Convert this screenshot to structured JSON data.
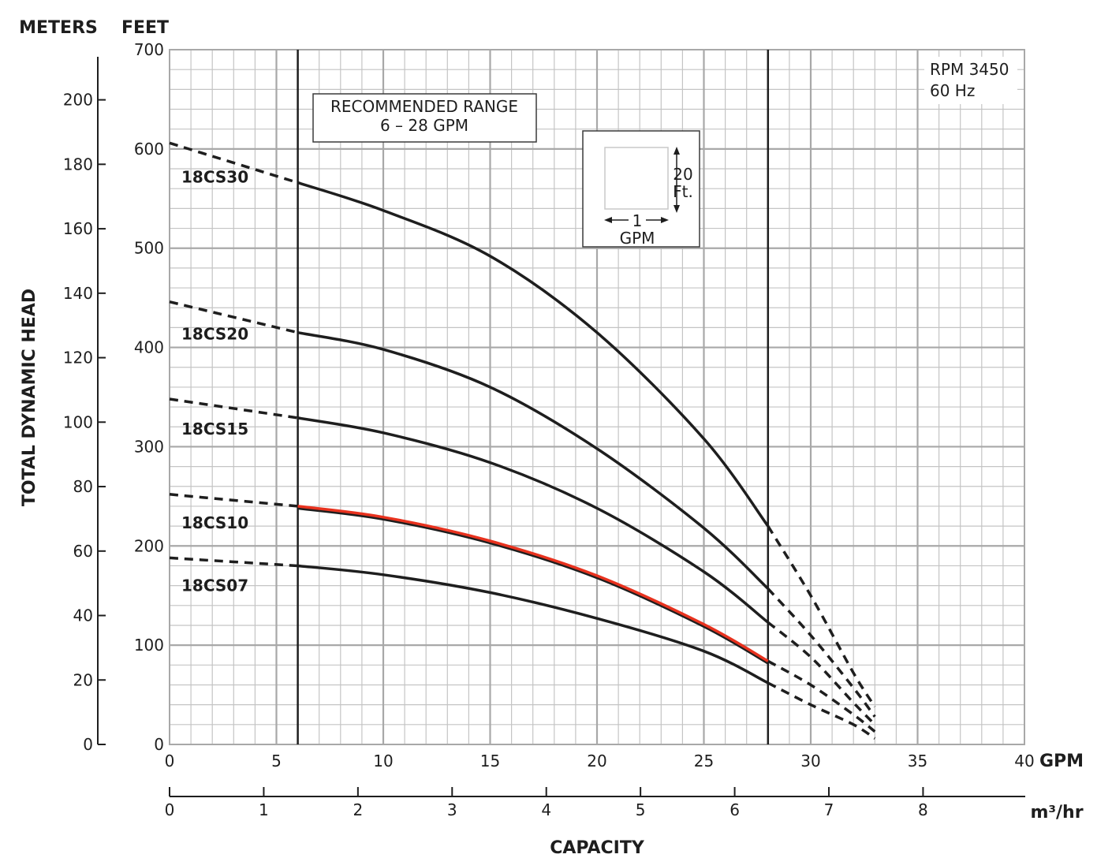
{
  "chart_data": {
    "type": "line",
    "xlabel": "CAPACITY",
    "ylabel": "TOTAL DYNAMIC HEAD",
    "x_unit": "GPM",
    "x2_unit": "m³/hr",
    "y_unit": "FEET",
    "y2_unit": "METERS",
    "xlim": [
      0,
      40
    ],
    "ylim": [
      0,
      700
    ],
    "x2lim": [
      0,
      9.085
    ],
    "y2lim": [
      0,
      213.36
    ],
    "x_ticks": [
      0,
      5,
      10,
      15,
      20,
      25,
      30,
      35,
      40
    ],
    "y_ticks": [
      0,
      100,
      200,
      300,
      400,
      500,
      600,
      700
    ],
    "x2_ticks": [
      0,
      1,
      2,
      3,
      4,
      5,
      6,
      7,
      8
    ],
    "y2_ticks": [
      0,
      20,
      40,
      60,
      80,
      100,
      120,
      140,
      160,
      180,
      200
    ],
    "grid": true,
    "recommended_range": {
      "x": [
        6,
        28
      ],
      "label_line1": "RECOMMENDED RANGE",
      "label_line2": "6 – 28 GPM"
    },
    "annotation": {
      "line1": "RPM 3450",
      "line2": "60 Hz"
    },
    "scale_box": {
      "vertical_value": "20",
      "vertical_unit": "Ft.",
      "horizontal_value": "1",
      "horizontal_unit": "GPM"
    },
    "series": [
      {
        "name": "18CS30",
        "color": "#1e1e1e",
        "x": [
          0,
          6,
          10,
          15,
          20,
          25,
          28,
          30,
          32,
          33
        ],
        "y": [
          606,
          566,
          538,
          492,
          415,
          308,
          220,
          150,
          72,
          38
        ]
      },
      {
        "name": "18CS20",
        "color": "#1e1e1e",
        "x": [
          0,
          6,
          10,
          15,
          20,
          25,
          28,
          30,
          32,
          33
        ],
        "y": [
          446,
          415,
          398,
          360,
          298,
          218,
          157,
          110,
          57,
          28
        ]
      },
      {
        "name": "18CS15",
        "color": "#1e1e1e",
        "x": [
          0,
          6,
          10,
          15,
          20,
          25,
          28,
          30,
          32,
          33
        ],
        "y": [
          348,
          329,
          314,
          284,
          238,
          174,
          123,
          88,
          42,
          20
        ]
      },
      {
        "name": "18CS10",
        "color": "#e8321e",
        "x": [
          0,
          6,
          10,
          15,
          20,
          25,
          28,
          30,
          32,
          33
        ],
        "y": [
          252,
          240,
          229,
          205,
          170,
          121,
          84,
          60,
          30,
          13
        ]
      },
      {
        "name": "18CS07",
        "color": "#1e1e1e",
        "x": [
          0,
          6,
          10,
          15,
          20,
          25,
          28,
          30,
          32,
          33
        ],
        "y": [
          188,
          180,
          171,
          153,
          127,
          94,
          62,
          40,
          20,
          6
        ]
      }
    ]
  }
}
